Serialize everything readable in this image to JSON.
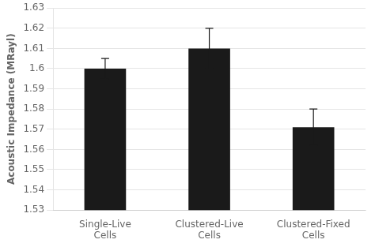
{
  "chart_data": {
    "type": "bar",
    "categories": [
      "Single-Live\nCells",
      "Clustered-Live\nCells",
      "Clustered-Fixed\nCells"
    ],
    "values": [
      1.6,
      1.61,
      1.571
    ],
    "errors": [
      0.005,
      0.01,
      0.009
    ],
    "color": "#1a1a1a",
    "ylabel": "Acoustic Impedance (MRayl)",
    "ylim": [
      1.53,
      1.63
    ],
    "yticks": [
      1.53,
      1.54,
      1.55,
      1.56,
      1.57,
      1.58,
      1.59,
      1.6,
      1.61,
      1.62,
      1.63
    ],
    "grid": true
  }
}
